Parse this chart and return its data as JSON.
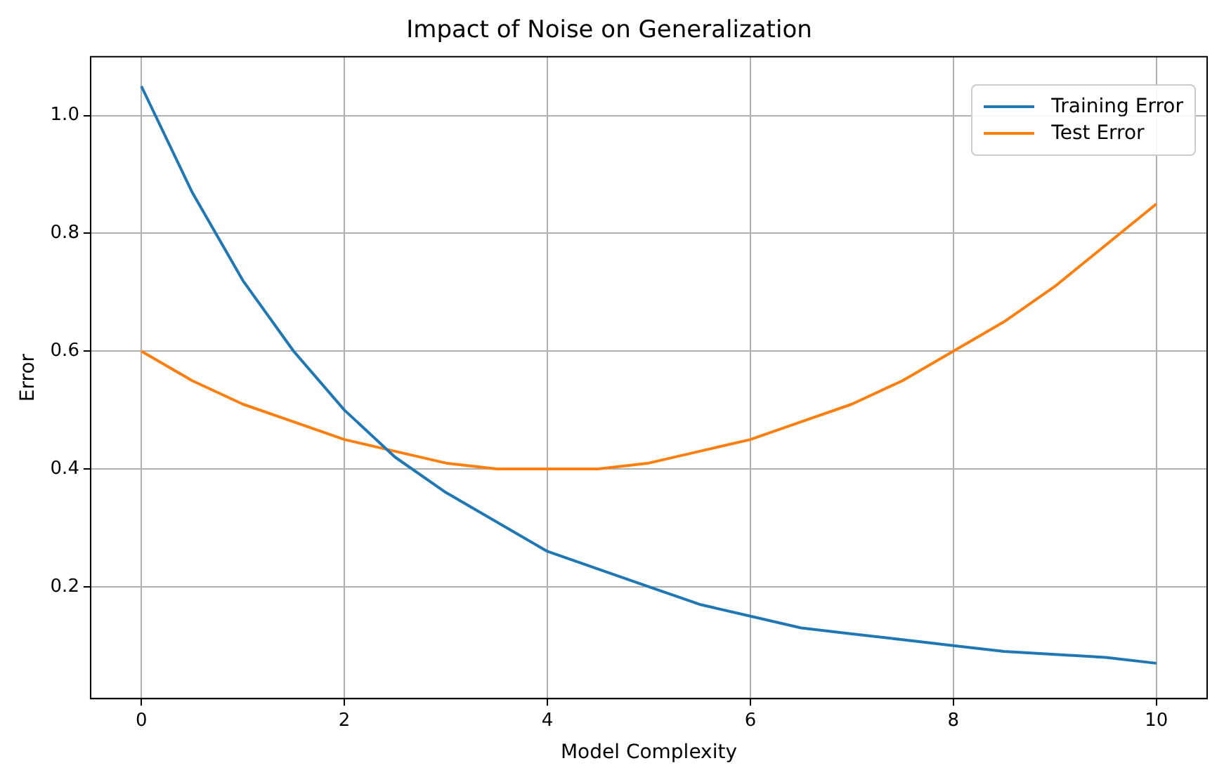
{
  "chart_data": {
    "type": "line",
    "title": "Impact of Noise on Generalization",
    "xlabel": "Model Complexity",
    "ylabel": "Error",
    "x": [
      0,
      0.5,
      1,
      1.5,
      2,
      2.5,
      3,
      3.5,
      4,
      4.5,
      5,
      5.5,
      6,
      6.5,
      7,
      7.5,
      8,
      8.5,
      9,
      9.5,
      10
    ],
    "series": [
      {
        "name": "Training Error",
        "color": "#1f77b4",
        "values": [
          1.05,
          0.87,
          0.72,
          0.6,
          0.5,
          0.42,
          0.36,
          0.31,
          0.26,
          0.23,
          0.2,
          0.17,
          0.15,
          0.13,
          0.12,
          0.11,
          0.1,
          0.09,
          0.085,
          0.08,
          0.07
        ]
      },
      {
        "name": "Test Error",
        "color": "#ff7f0e",
        "values": [
          0.6,
          0.55,
          0.51,
          0.48,
          0.45,
          0.43,
          0.41,
          0.4,
          0.4,
          0.4,
          0.41,
          0.43,
          0.45,
          0.48,
          0.51,
          0.55,
          0.6,
          0.65,
          0.71,
          0.78,
          0.85
        ]
      }
    ],
    "xlim": [
      -0.5,
      10.5
    ],
    "ylim": [
      0.01,
      1.1
    ],
    "xticks": [
      0,
      2,
      4,
      6,
      8,
      10
    ],
    "yticks": [
      {
        "value": 0.2,
        "label": "0.2"
      },
      {
        "value": 0.4,
        "label": "0.4"
      },
      {
        "value": 0.6,
        "label": "0.6"
      },
      {
        "value": 0.8,
        "label": "0.8"
      },
      {
        "value": 1.0,
        "label": "1.0"
      }
    ],
    "grid": true,
    "legend": "top right",
    "marker": "none",
    "line_style": "solid"
  }
}
